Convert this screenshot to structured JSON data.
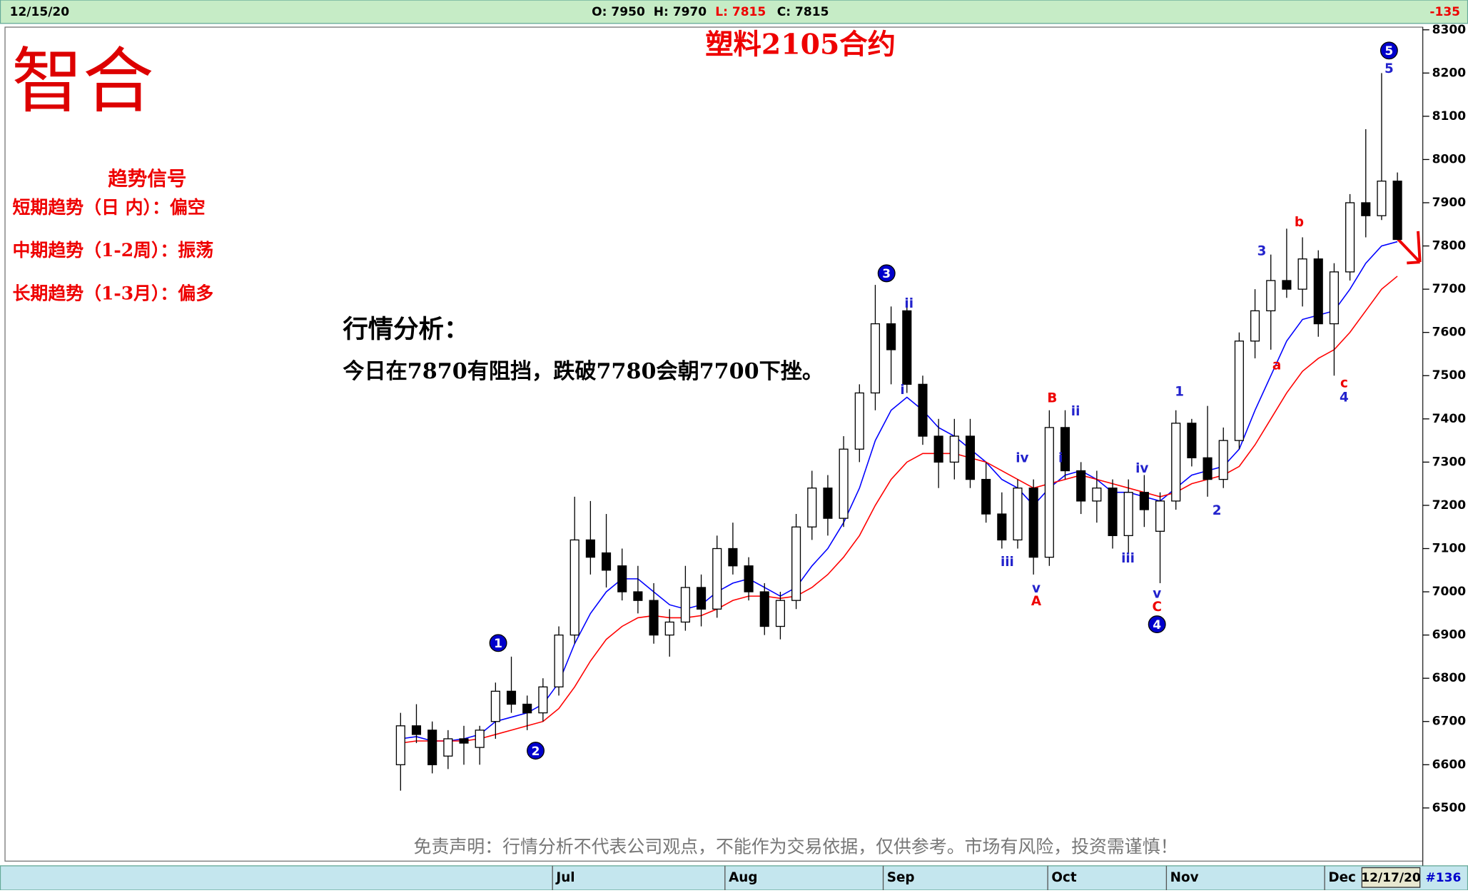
{
  "chart_data": {
    "type": "candlestick",
    "title": "塑料2105合约",
    "logo": "智合",
    "header": {
      "date": "12/15/20",
      "open": "O: 7950",
      "high": "H: 7970",
      "low": "L: 7815",
      "close": "C: 7815",
      "change": "-135"
    },
    "footer": {
      "date": "12/17/20",
      "count": "#136"
    },
    "signals": {
      "title": "趋势信号",
      "lines": [
        "短期趋势（日 内）：偏空",
        "中期趋势（1-2周）：振荡",
        "长期趋势（1-3月）：偏多"
      ]
    },
    "analysis": {
      "title": "行情分析：",
      "text": "今日在7870有阻挡，跌破7780会朝7700下挫。"
    },
    "disclaimer": "免责声明：行情分析不代表公司观点，不能作为交易依据，仅供参考。市场有风险，投资需谨慎！",
    "up_color": "#ffffff",
    "down_color": "#000000",
    "open": [
      6600,
      6690,
      6680,
      6620,
      6660,
      6640,
      6700,
      6770,
      6740,
      6720,
      6780,
      6900,
      7120,
      7090,
      7060,
      7000,
      6980,
      6900,
      6930,
      7010,
      6960,
      7100,
      7060,
      7000,
      6920,
      6980,
      7150,
      7240,
      7170,
      7330,
      7460,
      7620,
      7650,
      7480,
      7360,
      7300,
      7360,
      7260,
      7180,
      7120,
      7240,
      7080,
      7380,
      7280,
      7210,
      7240,
      7130,
      7230,
      7140,
      7210,
      7390,
      7310,
      7260,
      7350,
      7580,
      7650,
      7720,
      7700,
      7770,
      7620,
      7740,
      7900,
      7870,
      7950
    ],
    "high": [
      6720,
      6740,
      6700,
      6680,
      6690,
      6690,
      6790,
      6850,
      6760,
      6800,
      6920,
      7220,
      7210,
      7180,
      7100,
      7060,
      7020,
      6960,
      7060,
      7040,
      7130,
      7160,
      7080,
      7020,
      7000,
      7180,
      7280,
      7270,
      7360,
      7480,
      7710,
      7660,
      7670,
      7500,
      7400,
      7400,
      7400,
      7300,
      7230,
      7260,
      7260,
      7420,
      7420,
      7300,
      7280,
      7260,
      7260,
      7270,
      7230,
      7420,
      7400,
      7430,
      7380,
      7600,
      7700,
      7780,
      7840,
      7820,
      7790,
      7760,
      7920,
      8070,
      8200,
      7970
    ],
    "low": [
      6540,
      6650,
      6580,
      6590,
      6600,
      6600,
      6660,
      6720,
      6680,
      6700,
      6760,
      6880,
      7040,
      7010,
      6980,
      6950,
      6880,
      6850,
      6910,
      6920,
      6940,
      7040,
      6980,
      6900,
      6890,
      6960,
      7120,
      7130,
      7150,
      7300,
      7420,
      7480,
      7460,
      7340,
      7240,
      7260,
      7240,
      7160,
      7100,
      7100,
      7040,
      7060,
      7260,
      7180,
      7160,
      7100,
      7090,
      7150,
      7020,
      7190,
      7290,
      7220,
      7240,
      7330,
      7540,
      7560,
      7680,
      7660,
      7590,
      7500,
      7720,
      7820,
      7860,
      7815
    ],
    "close": [
      6690,
      6670,
      6600,
      6660,
      6650,
      6680,
      6770,
      6740,
      6720,
      6780,
      6900,
      7120,
      7080,
      7050,
      7000,
      6980,
      6900,
      6930,
      7010,
      6960,
      7100,
      7060,
      7000,
      6920,
      6980,
      7150,
      7240,
      7170,
      7330,
      7460,
      7620,
      7560,
      7480,
      7360,
      7300,
      7360,
      7260,
      7180,
      7120,
      7240,
      7080,
      7380,
      7280,
      7210,
      7240,
      7130,
      7230,
      7190,
      7210,
      7390,
      7310,
      7260,
      7350,
      7580,
      7650,
      7720,
      7700,
      7770,
      7620,
      7740,
      7900,
      7870,
      7950,
      7815
    ],
    "lines": [
      {
        "color": "#0000ff",
        "values": [
          6660,
          6665,
          6655,
          6655,
          6660,
          6670,
          6700,
          6710,
          6720,
          6740,
          6790,
          6880,
          6950,
          7000,
          7030,
          7030,
          7000,
          6970,
          6960,
          6970,
          7000,
          7020,
          7030,
          7010,
          6990,
          7010,
          7060,
          7100,
          7160,
          7240,
          7350,
          7420,
          7450,
          7420,
          7380,
          7360,
          7330,
          7300,
          7260,
          7240,
          7200,
          7240,
          7270,
          7280,
          7260,
          7230,
          7230,
          7220,
          7210,
          7240,
          7270,
          7280,
          7290,
          7330,
          7420,
          7500,
          7580,
          7630,
          7640,
          7650,
          7700,
          7760,
          7800,
          7810
        ]
      },
      {
        "color": "#ff0000",
        "values": [
          6650,
          6655,
          6655,
          6655,
          6655,
          6660,
          6670,
          6680,
          6690,
          6700,
          6730,
          6780,
          6840,
          6890,
          6920,
          6940,
          6945,
          6940,
          6940,
          6945,
          6960,
          6980,
          6990,
          6990,
          6985,
          6990,
          7010,
          7040,
          7080,
          7130,
          7200,
          7260,
          7300,
          7320,
          7320,
          7320,
          7310,
          7300,
          7280,
          7260,
          7240,
          7250,
          7260,
          7270,
          7260,
          7250,
          7240,
          7230,
          7220,
          7230,
          7250,
          7260,
          7270,
          7290,
          7340,
          7400,
          7460,
          7510,
          7540,
          7560,
          7600,
          7650,
          7700,
          7730
        ]
      }
    ],
    "annotations": [
      "1",
      "2",
      "3",
      "ii",
      "i",
      "iii",
      "iv",
      "v",
      "A",
      "B",
      "i",
      "ii",
      "iii",
      "iv",
      "v",
      "C",
      "4",
      "1",
      "2",
      "3",
      "a",
      "b",
      "c",
      "4",
      "5",
      "5"
    ],
    "xlim": [
      -25,
      64.6
    ],
    "xticks": [
      {
        "value": 9.6,
        "label": "Jul"
      },
      {
        "value": 20.5,
        "label": "Aug"
      },
      {
        "value": 30.5,
        "label": "Sep"
      },
      {
        "value": 40.9,
        "label": "Oct"
      },
      {
        "value": 48.4,
        "label": "Nov"
      },
      {
        "value": 58.4,
        "label": "Dec"
      }
    ],
    "ylim": [
      6377,
      8304
    ],
    "yticks": [
      6500,
      6600,
      6700,
      6800,
      6900,
      7000,
      7100,
      7200,
      7300,
      7400,
      7500,
      7600,
      7700,
      7800,
      7900,
      8000,
      8100,
      8200,
      8300
    ]
  }
}
